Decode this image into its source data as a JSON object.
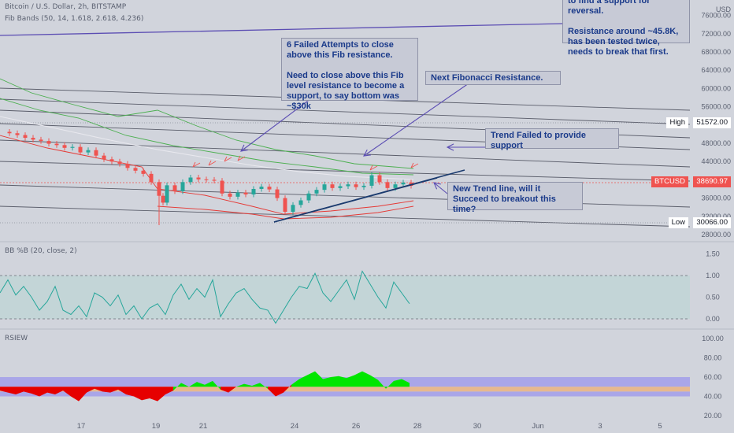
{
  "header": {
    "symbol_line": "Bitcoin / U.S. Dollar, 2h, BITSTAMP",
    "indicator_line": "Fib Bands (50, 14, 1.618, 2.618, 4.236)"
  },
  "axis_currency": "USD",
  "price_levels": {
    "high": {
      "label": "High",
      "value": "51572.00"
    },
    "low": {
      "label": "Low",
      "value": "30066.00"
    },
    "current": {
      "label": "BTCUSD",
      "value": "38690.97"
    }
  },
  "panes": {
    "bb_title": "BB %B (20, close, 2)",
    "rsiew_title": "RSIEW"
  },
  "annotations": {
    "top_right": "to find a support for reversal.\n\nResistance around ~45.8K, has been tested twice, needs to break that first.",
    "fib_fail": "6 Failed Attempts to close above this Fib resistance.\n\nNeed to close above this Fib level resistance to become a support, to say bottom was ~$30k",
    "next_fib": "Next Fibonacci Resistance.",
    "trend_failed": "Trend Failed to provide support",
    "new_trend": "New Trend line, will it Succeed to breakout this time?"
  },
  "colors": {
    "background": "#d1d4dc",
    "up_candle": "#26a69a",
    "down_candle": "#ef5350",
    "green_band": "#4caf50",
    "red_band": "#e53935",
    "trendline": "#1a3a6e",
    "arrow": "#5b4db3",
    "bb_line": "#26a69a",
    "rsi_up": "#00e600",
    "rsi_down": "#e60000"
  },
  "chart_data": [
    {
      "type": "candlestick",
      "title": "Bitcoin / U.S. Dollar, 2h, BITSTAMP",
      "ylim": [
        28000,
        78000
      ],
      "yticks": [
        "76000.00",
        "72000.00",
        "68000.00",
        "64000.00",
        "60000.00",
        "56000.00",
        "52000.00",
        "48000.00",
        "44000.00",
        "40000.00",
        "36000.00",
        "32000.00",
        "28000.00"
      ],
      "xticks": [
        "17",
        "19",
        "21",
        "24",
        "26",
        "28",
        "30",
        "Jun",
        "3",
        "5"
      ],
      "close_points": [
        [
          0,
          50500
        ],
        [
          10,
          50200
        ],
        [
          20,
          49800
        ],
        [
          30,
          49200
        ],
        [
          40,
          48800
        ],
        [
          50,
          48500
        ],
        [
          60,
          47900
        ],
        [
          70,
          47600
        ],
        [
          80,
          47000
        ],
        [
          90,
          47200
        ],
        [
          100,
          46000
        ],
        [
          110,
          46500
        ],
        [
          120,
          45300
        ],
        [
          130,
          44500
        ],
        [
          140,
          44000
        ],
        [
          150,
          43500
        ],
        [
          160,
          42600
        ],
        [
          170,
          42000
        ],
        [
          180,
          41300
        ],
        [
          190,
          39500
        ],
        [
          200,
          36500
        ],
        [
          205,
          35000
        ],
        [
          210,
          38800
        ],
        [
          220,
          37500
        ],
        [
          230,
          39500
        ],
        [
          240,
          40500
        ],
        [
          250,
          40100
        ],
        [
          260,
          40000
        ],
        [
          270,
          39800
        ],
        [
          280,
          37000
        ],
        [
          290,
          36300
        ],
        [
          300,
          37200
        ],
        [
          310,
          36800
        ],
        [
          320,
          38000
        ],
        [
          330,
          38500
        ],
        [
          340,
          37900
        ],
        [
          350,
          36000
        ],
        [
          360,
          33000
        ],
        [
          370,
          34500
        ],
        [
          380,
          35500
        ],
        [
          390,
          37000
        ],
        [
          400,
          37800
        ],
        [
          410,
          39000
        ],
        [
          420,
          38200
        ],
        [
          430,
          38600
        ],
        [
          440,
          39000
        ],
        [
          450,
          38400
        ],
        [
          460,
          38700
        ],
        [
          470,
          41000
        ],
        [
          480,
          39500
        ],
        [
          490,
          38200
        ],
        [
          500,
          39000
        ],
        [
          510,
          39400
        ],
        [
          520,
          38690
        ]
      ],
      "last_close": 38690.97,
      "high": 51572.0,
      "low": 30066.0
    },
    {
      "type": "line",
      "title": "BB %B (20, close, 2)",
      "ylim": [
        -0.2,
        1.6
      ],
      "yticks": [
        "1.50",
        "1.00",
        "0.50",
        "0.00"
      ],
      "points": [
        [
          0,
          0.6
        ],
        [
          10,
          0.9
        ],
        [
          20,
          0.55
        ],
        [
          30,
          0.75
        ],
        [
          40,
          0.5
        ],
        [
          50,
          0.2
        ],
        [
          60,
          0.4
        ],
        [
          70,
          0.75
        ],
        [
          80,
          0.2
        ],
        [
          90,
          0.1
        ],
        [
          100,
          0.3
        ],
        [
          110,
          0.05
        ],
        [
          120,
          0.6
        ],
        [
          130,
          0.5
        ],
        [
          140,
          0.3
        ],
        [
          150,
          0.55
        ],
        [
          160,
          0.1
        ],
        [
          170,
          0.3
        ],
        [
          180,
          0.0
        ],
        [
          190,
          0.25
        ],
        [
          200,
          0.35
        ],
        [
          210,
          0.1
        ],
        [
          220,
          0.55
        ],
        [
          230,
          0.8
        ],
        [
          240,
          0.45
        ],
        [
          250,
          0.7
        ],
        [
          260,
          0.5
        ],
        [
          270,
          0.9
        ],
        [
          280,
          0.05
        ],
        [
          290,
          0.35
        ],
        [
          300,
          0.6
        ],
        [
          310,
          0.7
        ],
        [
          320,
          0.45
        ],
        [
          330,
          0.25
        ],
        [
          340,
          0.2
        ],
        [
          350,
          -0.1
        ],
        [
          360,
          0.2
        ],
        [
          370,
          0.5
        ],
        [
          380,
          0.75
        ],
        [
          390,
          0.7
        ],
        [
          400,
          1.05
        ],
        [
          410,
          0.6
        ],
        [
          420,
          0.4
        ],
        [
          430,
          0.65
        ],
        [
          440,
          0.9
        ],
        [
          450,
          0.45
        ],
        [
          460,
          1.1
        ],
        [
          470,
          0.8
        ],
        [
          480,
          0.5
        ],
        [
          490,
          0.25
        ],
        [
          500,
          0.85
        ],
        [
          510,
          0.6
        ],
        [
          520,
          0.35
        ]
      ]
    },
    {
      "type": "area",
      "title": "RSIEW",
      "ylim": [
        15,
        105
      ],
      "yticks": [
        "100.00",
        "80.00",
        "60.00",
        "40.00",
        "20.00"
      ],
      "midline": 50,
      "points": [
        [
          0,
          46
        ],
        [
          10,
          44
        ],
        [
          20,
          42
        ],
        [
          30,
          45
        ],
        [
          40,
          43
        ],
        [
          50,
          40
        ],
        [
          60,
          44
        ],
        [
          70,
          42
        ],
        [
          80,
          46
        ],
        [
          90,
          40
        ],
        [
          100,
          35
        ],
        [
          110,
          44
        ],
        [
          120,
          48
        ],
        [
          130,
          45
        ],
        [
          140,
          44
        ],
        [
          150,
          47
        ],
        [
          160,
          42
        ],
        [
          170,
          40
        ],
        [
          180,
          36
        ],
        [
          190,
          38
        ],
        [
          200,
          35
        ],
        [
          210,
          42
        ],
        [
          220,
          46
        ],
        [
          230,
          54
        ],
        [
          240,
          50
        ],
        [
          250,
          55
        ],
        [
          260,
          52
        ],
        [
          270,
          56
        ],
        [
          280,
          47
        ],
        [
          290,
          44
        ],
        [
          300,
          50
        ],
        [
          310,
          53
        ],
        [
          320,
          51
        ],
        [
          330,
          54
        ],
        [
          340,
          48
        ],
        [
          350,
          40
        ],
        [
          360,
          44
        ],
        [
          370,
          52
        ],
        [
          380,
          58
        ],
        [
          390,
          62
        ],
        [
          400,
          66
        ],
        [
          410,
          58
        ],
        [
          420,
          60
        ],
        [
          430,
          61
        ],
        [
          440,
          59
        ],
        [
          450,
          62
        ],
        [
          460,
          66
        ],
        [
          470,
          62
        ],
        [
          480,
          57
        ],
        [
          490,
          48
        ],
        [
          500,
          56
        ],
        [
          510,
          58
        ],
        [
          520,
          54
        ]
      ]
    }
  ]
}
